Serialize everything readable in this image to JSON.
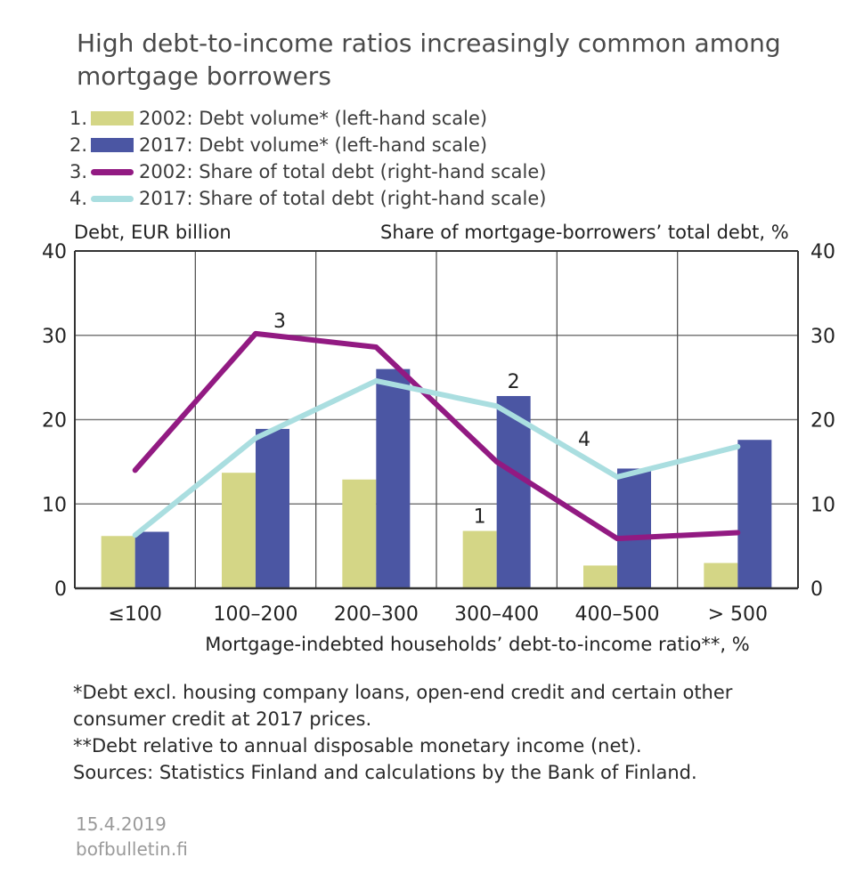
{
  "title_lines": [
    "High debt-to-income ratios increasingly common among",
    "mortgage borrowers"
  ],
  "legend": [
    {
      "num": "1.",
      "label": "2002: Debt volume* (left-hand scale)",
      "type": "bar",
      "color": "#d4d686"
    },
    {
      "num": "2.",
      "label": "2017: Debt volume* (left-hand scale)",
      "type": "bar",
      "color": "#4b56a3"
    },
    {
      "num": "3.",
      "label": "2002: Share of total debt (right-hand scale)",
      "type": "line",
      "color": "#921a82"
    },
    {
      "num": "4.",
      "label": "2017: Share of total debt (right-hand scale)",
      "type": "line",
      "color": "#aadee0"
    }
  ],
  "notes": [
    "*Debt excl. housing company loans, open-end credit and certain other",
    "consumer credit at 2017 prices.",
    "**Debt relative to annual disposable monetary income (net).",
    "Sources: Statistics Finland and calculations by the Bank of Finland."
  ],
  "footer": {
    "date": "15.4.2019",
    "site": "bofbulletin.fi"
  },
  "chart_data": {
    "type": "bar",
    "title": "High debt-to-income ratios increasingly common among mortgage borrowers",
    "ylabel_left": "Debt, EUR billion",
    "ylabel_right": "Share of mortgage-borrowers’ total debt, %",
    "xlabel": "Mortgage-indebted households’ debt-to-income ratio**, %",
    "categories": [
      "≤100",
      "100–200",
      "200–300",
      "300–400",
      "400–500",
      "> 500"
    ],
    "ylim": [
      0,
      40
    ],
    "yticks": [
      "0",
      "10",
      "20",
      "30",
      "40"
    ],
    "grid": true,
    "series": [
      {
        "name": "2002: Debt volume* (left-hand scale)",
        "type": "bar",
        "axis": "left",
        "color": "#d4d686",
        "values": [
          6.2,
          13.7,
          12.9,
          6.8,
          2.7,
          3.0
        ],
        "marker_label": "1",
        "marker_index": 3
      },
      {
        "name": "2017: Debt volume* (left-hand scale)",
        "type": "bar",
        "axis": "left",
        "color": "#4b56a3",
        "values": [
          6.7,
          18.9,
          26.0,
          22.8,
          14.2,
          17.6
        ],
        "marker_label": "2",
        "marker_index": 3
      },
      {
        "name": "2002: Share of total debt (right-hand scale)",
        "type": "line",
        "axis": "right",
        "color": "#921a82",
        "values": [
          14.0,
          30.2,
          28.6,
          15.0,
          5.9,
          6.6
        ],
        "marker_label": "3",
        "marker_index": 1
      },
      {
        "name": "2017: Share of total debt (right-hand scale)",
        "type": "line",
        "axis": "right",
        "color": "#aadee0",
        "values": [
          6.3,
          17.8,
          24.6,
          21.6,
          13.2,
          16.8
        ],
        "marker_label": "4",
        "marker_index": 4
      }
    ]
  }
}
